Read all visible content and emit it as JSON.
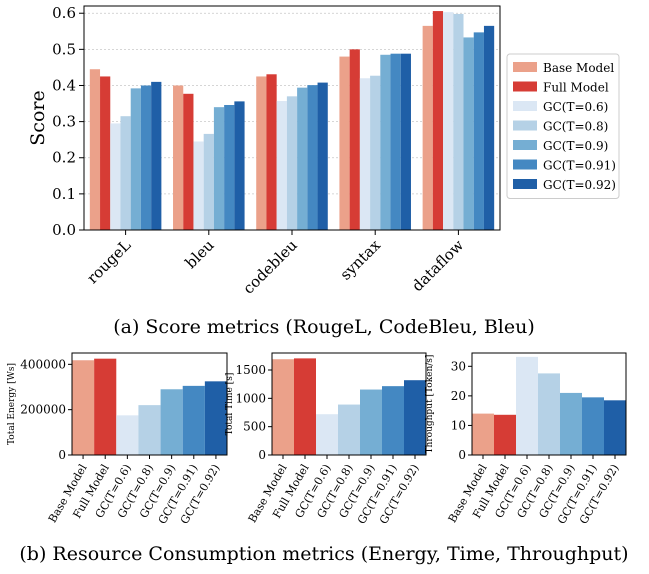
{
  "colors": [
    "#eba18a",
    "#d63c35",
    "#dbe7f4",
    "#b5d1e6",
    "#75aed3",
    "#4488c2",
    "#1f5fa7"
  ],
  "captions": {
    "a": "(a) Score metrics (RougeL, CodeBleu, Bleu)",
    "b": "(b) Resource Consumption metrics (Energy, Time, Throughput)"
  },
  "chart_data": [
    {
      "type": "bar",
      "ylabel": "Score",
      "ylim": [
        0,
        0.62
      ],
      "yticks": [
        "0.0",
        "0.1",
        "0.2",
        "0.3",
        "0.4",
        "0.5",
        "0.6"
      ],
      "grid": true,
      "legend_position": "right",
      "categories": [
        "rougeL",
        "bleu",
        "codebleu",
        "syntax",
        "dataflow"
      ],
      "series": [
        {
          "name": "Base Model",
          "values": [
            0.445,
            0.4,
            0.425,
            0.48,
            0.565
          ]
        },
        {
          "name": "Full Model",
          "values": [
            0.425,
            0.377,
            0.431,
            0.5,
            0.606
          ]
        },
        {
          "name": "GC(T=0.6)",
          "values": [
            0.295,
            0.245,
            0.357,
            0.42,
            0.603
          ]
        },
        {
          "name": "GC(T=0.8)",
          "values": [
            0.315,
            0.266,
            0.37,
            0.427,
            0.598
          ]
        },
        {
          "name": "GC(T=0.9)",
          "values": [
            0.392,
            0.34,
            0.394,
            0.485,
            0.533
          ]
        },
        {
          "name": "GC(T=0.91)",
          "values": [
            0.4,
            0.346,
            0.401,
            0.488,
            0.547
          ]
        },
        {
          "name": "GC(T=0.92)",
          "values": [
            0.41,
            0.356,
            0.408,
            0.488,
            0.565
          ]
        }
      ]
    },
    {
      "type": "bar",
      "ylabel": "Total Energy [Ws]",
      "ylim": [
        0,
        450000
      ],
      "yticks": [
        "0",
        "200000",
        "400000"
      ],
      "categories": [
        "Base Model",
        "Full Model",
        "GC(T=0.6)",
        "GC(T=0.8)",
        "GC(T=0.9)",
        "GC(T=0.91)",
        "GC(T=0.92)"
      ],
      "values": [
        418000,
        425000,
        175000,
        220000,
        290000,
        305000,
        325000
      ]
    },
    {
      "type": "bar",
      "ylabel": "Total Time [s]",
      "ylim": [
        0,
        1800
      ],
      "yticks": [
        "0",
        "500",
        "1000",
        "1500"
      ],
      "categories": [
        "Base Model",
        "Full Model",
        "GC(T=0.6)",
        "GC(T=0.8)",
        "GC(T=0.9)",
        "GC(T=0.91)",
        "GC(T=0.92)"
      ],
      "values": [
        1690,
        1705,
        720,
        890,
        1155,
        1215,
        1320
      ]
    },
    {
      "type": "bar",
      "ylabel": "Throughput [Token/s]",
      "ylim": [
        0,
        34.5
      ],
      "yticks": [
        "0",
        "10",
        "20",
        "30"
      ],
      "categories": [
        "Base Model",
        "Full Model",
        "GC(T=0.6)",
        "GC(T=0.8)",
        "GC(T=0.9)",
        "GC(T=0.91)",
        "GC(T=0.92)"
      ],
      "values": [
        14.0,
        13.6,
        33.2,
        27.6,
        21.0,
        19.5,
        18.5
      ]
    }
  ]
}
